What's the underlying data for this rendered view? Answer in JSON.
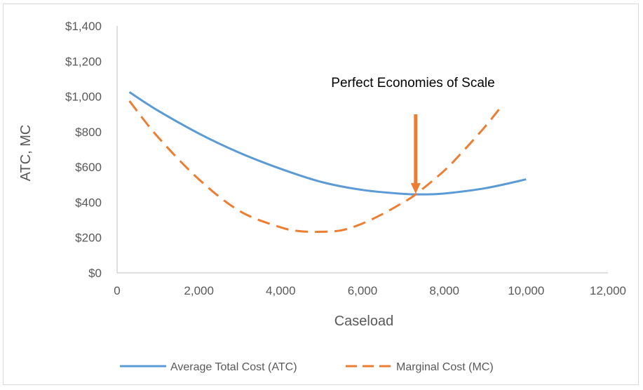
{
  "chart_data": {
    "type": "line",
    "title": "",
    "xlabel": "Caseload",
    "ylabel": "ATC, MC",
    "xlim": [
      0,
      12000
    ],
    "ylim": [
      0,
      1400
    ],
    "xticks": [
      0,
      2000,
      4000,
      6000,
      8000,
      10000,
      12000
    ],
    "xtick_labels": [
      "0",
      "2,000",
      "4,000",
      "6,000",
      "8,000",
      "10,000",
      "12,000"
    ],
    "yticks": [
      0,
      200,
      400,
      600,
      800,
      1000,
      1200,
      1400
    ],
    "ytick_labels": [
      "$0",
      "$200",
      "$400",
      "$600",
      "$800",
      "$1,000",
      "$1,200",
      "$1,400"
    ],
    "grid": false,
    "legend_position": "bottom",
    "series": [
      {
        "name": "Average Total Cost (ATC)",
        "color": "#5b9bd5",
        "style": "solid",
        "x": [
          300,
          1000,
          2000,
          3000,
          4000,
          5000,
          6000,
          7000,
          7500,
          8000,
          9000,
          10000
        ],
        "y": [
          1025,
          920,
          790,
          680,
          590,
          515,
          470,
          448,
          445,
          450,
          480,
          530
        ]
      },
      {
        "name": "Marginal Cost (MC)",
        "color": "#ed7d31",
        "style": "dashed",
        "x": [
          300,
          1000,
          2000,
          3000,
          4000,
          4500,
          5000,
          5500,
          6000,
          6500,
          7000,
          7300,
          8000,
          8500,
          9000,
          9400
        ],
        "y": [
          975,
          770,
          530,
          350,
          258,
          236,
          233,
          242,
          280,
          335,
          400,
          445,
          580,
          700,
          830,
          945
        ]
      }
    ],
    "annotations": [
      {
        "text": "Perfect Economies of Scale",
        "arrow_x": 7300,
        "arrow_y": 445,
        "color": "#ed7d31"
      }
    ]
  }
}
